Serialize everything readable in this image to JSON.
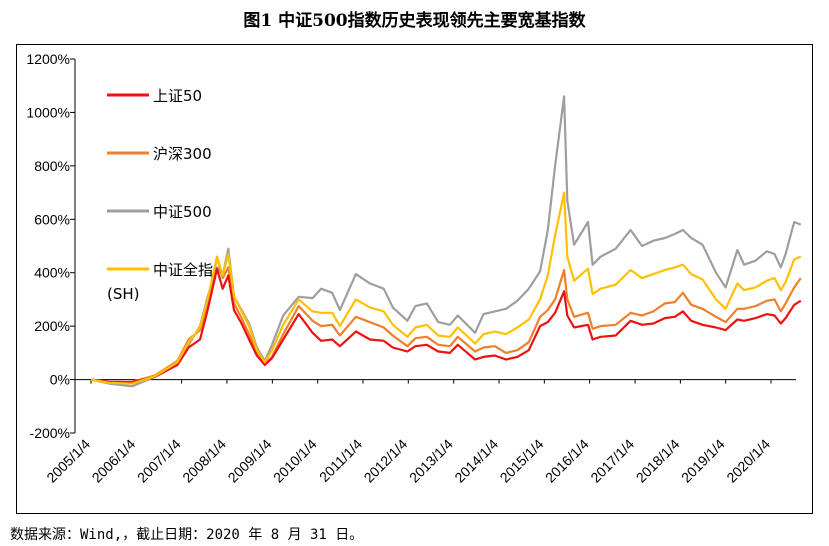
{
  "title": "图1 中证500指数历史表现领先主要宽基指数",
  "source": "数据来源：Wind,，截止日期：2020 年 8 月 31 日。",
  "chart_data": {
    "type": "line",
    "title": "图1 中证500指数历史表现领先主要宽基指数",
    "xlabel": "",
    "ylabel": "",
    "ylim": [
      -200,
      1200
    ],
    "xlim": [
      "2005-01-04",
      "2020-08-31"
    ],
    "grid": false,
    "legend_position": "top-left",
    "y_ticks": [
      "-200%",
      "0%",
      "200%",
      "400%",
      "600%",
      "800%",
      "1000%",
      "1200%"
    ],
    "x_ticks": [
      "2005/1/4",
      "2006/1/4",
      "2007/1/4",
      "2008/1/4",
      "2009/1/4",
      "2010/1/4",
      "2011/1/4",
      "2012/1/4",
      "2013/1/4",
      "2014/1/4",
      "2015/1/4",
      "2016/1/4",
      "2017/1/4",
      "2018/1/4",
      "2019/1/4",
      "2020/1/4"
    ],
    "x": [
      "2005-01-04",
      "2005-06-01",
      "2005-12-01",
      "2006-06-01",
      "2006-12-01",
      "2007-03-01",
      "2007-06-01",
      "2007-08-01",
      "2007-10-16",
      "2007-12-01",
      "2008-01-15",
      "2008-03-01",
      "2008-05-01",
      "2008-07-01",
      "2008-09-01",
      "2008-11-04",
      "2009-01-01",
      "2009-04-01",
      "2009-08-04",
      "2009-11-24",
      "2010-02-01",
      "2010-05-01",
      "2010-07-02",
      "2010-11-08",
      "2011-03-01",
      "2011-06-20",
      "2011-09-01",
      "2011-12-28",
      "2012-03-01",
      "2012-06-01",
      "2012-09-01",
      "2012-12-04",
      "2013-02-06",
      "2013-06-25",
      "2013-09-01",
      "2013-12-01",
      "2014-03-01",
      "2014-06-01",
      "2014-09-01",
      "2014-12-01",
      "2015-02-01",
      "2015-04-01",
      "2015-06-12",
      "2015-07-08",
      "2015-09-01",
      "2015-12-22",
      "2016-01-28",
      "2016-04-01",
      "2016-08-01",
      "2016-11-29",
      "2017-03-01",
      "2017-06-01",
      "2017-09-01",
      "2017-11-20",
      "2018-01-24",
      "2018-04-01",
      "2018-07-01",
      "2018-10-18",
      "2019-01-03",
      "2019-04-08",
      "2019-06-01",
      "2019-09-01",
      "2019-12-01",
      "2020-02-01",
      "2020-03-23",
      "2020-05-01",
      "2020-07-09",
      "2020-08-31"
    ],
    "series": [
      {
        "name": "上证50",
        "color": "#ee1111",
        "values": [
          0,
          -8,
          -10,
          10,
          55,
          120,
          150,
          260,
          415,
          340,
          390,
          260,
          210,
          150,
          90,
          55,
          80,
          150,
          245,
          175,
          145,
          150,
          125,
          180,
          150,
          145,
          120,
          105,
          125,
          130,
          105,
          100,
          130,
          75,
          85,
          90,
          75,
          85,
          110,
          200,
          215,
          250,
          330,
          240,
          195,
          205,
          150,
          160,
          165,
          220,
          205,
          210,
          230,
          235,
          255,
          220,
          205,
          195,
          185,
          225,
          220,
          230,
          245,
          240,
          210,
          230,
          280,
          295
        ]
      },
      {
        "name": "沪深300",
        "color": "#f07f2a",
        "values": [
          0,
          -10,
          -8,
          15,
          70,
          150,
          185,
          275,
          460,
          380,
          420,
          285,
          230,
          170,
          100,
          60,
          85,
          170,
          275,
          220,
          200,
          205,
          165,
          235,
          215,
          195,
          165,
          125,
          155,
          160,
          130,
          125,
          160,
          105,
          120,
          125,
          100,
          110,
          140,
          235,
          260,
          300,
          410,
          300,
          235,
          250,
          190,
          200,
          205,
          250,
          240,
          255,
          285,
          290,
          325,
          280,
          265,
          235,
          215,
          265,
          265,
          275,
          295,
          300,
          255,
          285,
          345,
          380
        ]
      },
      {
        "name": "中证500",
        "color": "#9e9e9e",
        "values": [
          0,
          -15,
          -25,
          10,
          55,
          130,
          200,
          310,
          420,
          390,
          490,
          310,
          260,
          210,
          120,
          70,
          130,
          240,
          310,
          305,
          340,
          325,
          260,
          395,
          360,
          340,
          270,
          220,
          275,
          285,
          215,
          205,
          240,
          175,
          245,
          255,
          265,
          295,
          340,
          405,
          560,
          800,
          1060,
          670,
          505,
          590,
          430,
          460,
          490,
          560,
          500,
          520,
          530,
          545,
          560,
          530,
          505,
          400,
          345,
          485,
          430,
          445,
          480,
          470,
          420,
          470,
          590,
          580
        ]
      },
      {
        "name": "中证全指(SH)",
        "color": "#ffc000",
        "values": [
          0,
          -12,
          -15,
          12,
          65,
          140,
          195,
          300,
          460,
          390,
          470,
          310,
          255,
          200,
          110,
          65,
          110,
          205,
          300,
          255,
          250,
          250,
          200,
          300,
          270,
          255,
          205,
          160,
          195,
          205,
          165,
          160,
          195,
          135,
          170,
          180,
          170,
          195,
          225,
          300,
          390,
          540,
          700,
          460,
          370,
          415,
          320,
          340,
          355,
          410,
          380,
          395,
          410,
          420,
          430,
          395,
          375,
          300,
          265,
          360,
          335,
          345,
          370,
          380,
          335,
          365,
          450,
          460
        ]
      }
    ]
  }
}
